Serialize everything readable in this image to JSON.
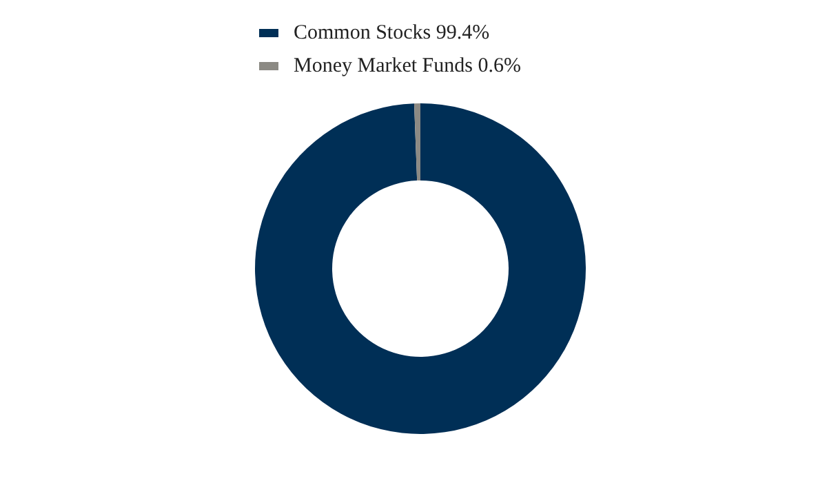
{
  "chart_data": {
    "type": "donut",
    "categories": [
      "Common Stocks 99.4%",
      "Money Market Funds 0.6%"
    ],
    "values": [
      99.4,
      0.6
    ],
    "colors": [
      "#002f56",
      "#8c8a84"
    ],
    "legend": "top"
  }
}
